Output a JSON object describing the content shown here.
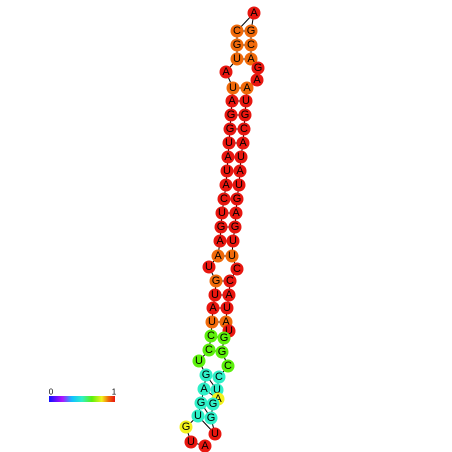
{
  "nodes": [
    {
      "label": "A",
      "color": "#e8160f"
    },
    {
      "label": "U",
      "color": "#e8160f"
    },
    {
      "label": "G",
      "color": "#f2f21c"
    },
    {
      "label": "U",
      "color": "#2ef0c8"
    },
    {
      "label": "G",
      "color": "#2ef0c8"
    },
    {
      "label": "A",
      "color": "#2ef0c8"
    },
    {
      "label": "G",
      "color": "#2ef0c8"
    },
    {
      "label": "U",
      "color": "#5cf00c"
    },
    {
      "label": "C",
      "color": "#5cf00c"
    },
    {
      "label": "C",
      "color": "#5cf00c"
    },
    {
      "label": "U",
      "color": "#f06a0a"
    },
    {
      "label": "A",
      "color": "#e8160f"
    },
    {
      "label": "U",
      "color": "#e8160f"
    },
    {
      "label": "G",
      "color": "#f06a0a"
    },
    {
      "label": "U",
      "color": "#e8160f"
    },
    {
      "label": "A",
      "color": "#f06a0a"
    },
    {
      "label": "A",
      "color": "#e8160f"
    },
    {
      "label": "G",
      "color": "#e8160f"
    },
    {
      "label": "U",
      "color": "#e8160f"
    },
    {
      "label": "C",
      "color": "#e8160f"
    },
    {
      "label": "A",
      "color": "#e8160f"
    },
    {
      "label": "U",
      "color": "#e8160f"
    },
    {
      "label": "A",
      "color": "#e8160f"
    },
    {
      "label": "U",
      "color": "#e8160f"
    },
    {
      "label": "G",
      "color": "#e8160f"
    },
    {
      "label": "G",
      "color": "#e8160f"
    },
    {
      "label": "A",
      "color": "#e8160f"
    },
    {
      "label": "U",
      "color": "#f06a0a"
    },
    {
      "label": "A",
      "color": "#e8160f"
    },
    {
      "label": "U",
      "color": "#f06a0a"
    },
    {
      "label": "G",
      "color": "#f06a0a"
    },
    {
      "label": "C",
      "color": "#f06a0a"
    },
    {
      "label": "A",
      "color": "#e8160f"
    },
    {
      "label": "G",
      "color": "#f06a0a"
    },
    {
      "label": "C",
      "color": "#f06a0a"
    },
    {
      "label": "A",
      "color": "#f06a0a"
    },
    {
      "label": "G",
      "color": "#e8160f"
    },
    {
      "label": "A",
      "color": "#e8160f"
    },
    {
      "label": "A",
      "color": "#f06a0a"
    },
    {
      "label": "U",
      "color": "#e8160f"
    },
    {
      "label": "G",
      "color": "#e8160f"
    },
    {
      "label": "C",
      "color": "#e8160f"
    },
    {
      "label": "A",
      "color": "#e8160f"
    },
    {
      "label": "U",
      "color": "#e8160f"
    },
    {
      "label": "A",
      "color": "#e8160f"
    },
    {
      "label": "U",
      "color": "#e8160f"
    },
    {
      "label": "G",
      "color": "#e8160f"
    },
    {
      "label": "A",
      "color": "#e8160f"
    },
    {
      "label": "G",
      "color": "#e8160f"
    },
    {
      "label": "U",
      "color": "#e8160f"
    },
    {
      "label": "U",
      "color": "#f06a0a"
    },
    {
      "label": "C",
      "color": "#e8160f"
    },
    {
      "label": "C",
      "color": "#e8160f"
    },
    {
      "label": "A",
      "color": "#e8160f"
    },
    {
      "label": "U",
      "color": "#e8160f"
    },
    {
      "label": "A",
      "color": "#f06a0a"
    },
    {
      "label": "U",
      "color": "#e8160f"
    },
    {
      "label": "G",
      "color": "#5cf00c"
    },
    {
      "label": "G",
      "color": "#5cf00c"
    },
    {
      "label": "C",
      "color": "#5cf00c"
    },
    {
      "label": "C",
      "color": "#2ef0c8"
    },
    {
      "label": "U",
      "color": "#2ef0c8"
    },
    {
      "label": "A",
      "color": "#f2f21c"
    },
    {
      "label": "G",
      "color": "#2ef0c8"
    },
    {
      "label": "G",
      "color": "#2ef0c8"
    },
    {
      "label": "U",
      "color": "#e8160f"
    }
  ],
  "legend": {
    "min": 0,
    "max": 1
  }
}
